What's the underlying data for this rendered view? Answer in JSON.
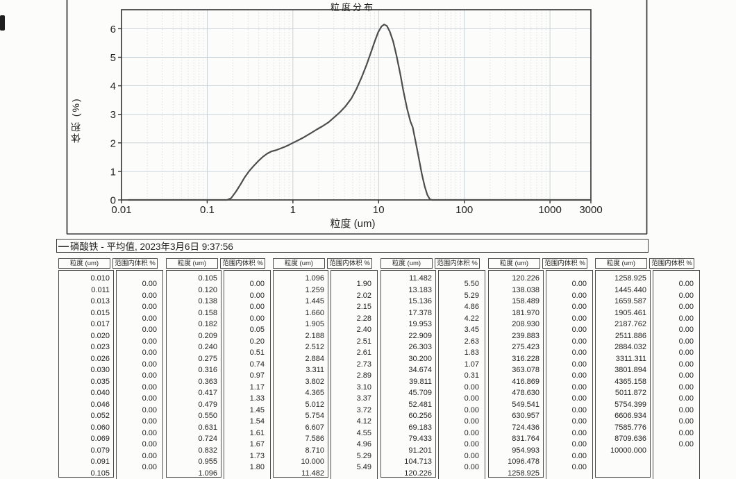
{
  "chart": {
    "title": "粒度分布",
    "ylabel": "体积 (%)",
    "xlabel": "粒度 (um)",
    "legend_text": "磷酸铁 - 平均值, 2023年3月6日 9:37:56",
    "x_tick_labels": [
      "0.01",
      "0.1",
      "1",
      "10",
      "100",
      "1000",
      "3000"
    ],
    "x_tick_values": [
      0.01,
      0.1,
      1,
      10,
      100,
      1000,
      3000
    ],
    "y_tick_labels": [
      "0",
      "1",
      "2",
      "3",
      "4",
      "5",
      "6"
    ],
    "y_tick_values": [
      0,
      1,
      2,
      3,
      4,
      5,
      6
    ],
    "curve_color": "#4d4d4d",
    "grid_major_color": "#c3cdd4",
    "grid_minor_color": "#d3dbe0",
    "frame_color": "#3d3d3d"
  },
  "chart_data": {
    "type": "line",
    "title": "粒度分布",
    "xlabel": "粒度 (um)",
    "ylabel": "体积 (%)",
    "x_scale": "log",
    "xlim": [
      0.01,
      3000
    ],
    "ylim": [
      0,
      6.7
    ],
    "grid": true,
    "legend_position": "bottom-left",
    "legend": [
      "磷酸铁 - 平均值, 2023年3月6日 9:37:56"
    ],
    "series": [
      {
        "name": "磷酸铁 - 平均值",
        "x": [
          0.012,
          0.17,
          0.19,
          0.215,
          0.245,
          0.275,
          0.31,
          0.35,
          0.4,
          0.45,
          0.5,
          0.56,
          0.63,
          0.7,
          0.8,
          0.9,
          1.0,
          1.15,
          1.35,
          1.6,
          1.9,
          2.2,
          2.6,
          3.0,
          3.5,
          4.1,
          4.8,
          5.5,
          6.3,
          7.2,
          8.1,
          9.0,
          9.9,
          10.8,
          11.6,
          12.5,
          13.5,
          14.8,
          16.2,
          17.8,
          19.5,
          21.5,
          23.5,
          25.0,
          27.0,
          29.5,
          32.0,
          34.5,
          37.0,
          39.5,
          42.0,
          100,
          1000,
          2900
        ],
        "y": [
          0.0,
          0.0,
          0.06,
          0.28,
          0.55,
          0.8,
          1.02,
          1.2,
          1.38,
          1.52,
          1.62,
          1.7,
          1.74,
          1.79,
          1.86,
          1.93,
          2.0,
          2.09,
          2.2,
          2.33,
          2.47,
          2.58,
          2.72,
          2.88,
          3.06,
          3.28,
          3.55,
          3.88,
          4.28,
          4.72,
          5.15,
          5.55,
          5.88,
          6.08,
          6.15,
          6.1,
          5.9,
          5.55,
          5.05,
          4.45,
          3.8,
          3.2,
          2.75,
          2.55,
          2.05,
          1.45,
          0.9,
          0.48,
          0.18,
          0.03,
          0.0,
          0.0,
          0.0,
          0.0
        ]
      }
    ]
  },
  "tables": [
    {
      "size_header": "粒度 (um)",
      "value_header": "范围内体积 %",
      "sizes": [
        "0.010",
        "0.011",
        "0.013",
        "0.015",
        "0.017",
        "0.020",
        "0.023",
        "0.026",
        "0.030",
        "0.035",
        "0.040",
        "0.046",
        "0.052",
        "0.060",
        "0.069",
        "0.079",
        "0.091",
        "0.105"
      ],
      "values": [
        "0.00",
        "0.00",
        "0.00",
        "0.00",
        "0.00",
        "0.00",
        "0.00",
        "0.00",
        "0.00",
        "0.00",
        "0.00",
        "0.00",
        "0.00",
        "0.00",
        "0.00",
        "0.00",
        "0.00"
      ]
    },
    {
      "size_header": "粒度 (um)",
      "value_header": "范围内体积 %",
      "sizes": [
        "0.105",
        "0.120",
        "0.138",
        "0.158",
        "0.182",
        "0.209",
        "0.240",
        "0.275",
        "0.316",
        "0.363",
        "0.417",
        "0.479",
        "0.550",
        "0.631",
        "0.724",
        "0.832",
        "0.955",
        "1.096"
      ],
      "values": [
        "0.00",
        "0.00",
        "0.00",
        "0.00",
        "0.05",
        "0.20",
        "0.51",
        "0.74",
        "0.97",
        "1.17",
        "1.33",
        "1.45",
        "1.54",
        "1.61",
        "1.67",
        "1.73",
        "1.80"
      ]
    },
    {
      "size_header": "粒度 (um)",
      "value_header": "范围内体积 %",
      "sizes": [
        "1.096",
        "1.259",
        "1.445",
        "1.660",
        "1.905",
        "2.188",
        "2.512",
        "2.884",
        "3.311",
        "3.802",
        "4.365",
        "5.012",
        "5.754",
        "6.607",
        "7.586",
        "8.710",
        "10.000",
        "11.482"
      ],
      "values": [
        "1.90",
        "2.02",
        "2.15",
        "2.28",
        "2.40",
        "2.51",
        "2.61",
        "2.73",
        "2.89",
        "3.10",
        "3.37",
        "3.72",
        "4.12",
        "4.55",
        "4.96",
        "5.29",
        "5.49"
      ]
    },
    {
      "size_header": "粒度 (um)",
      "value_header": "范围内体积 %",
      "sizes": [
        "11.482",
        "13.183",
        "15.136",
        "17.378",
        "19.953",
        "22.909",
        "26.303",
        "30.200",
        "34.674",
        "39.811",
        "45.709",
        "52.481",
        "60.256",
        "69.183",
        "79.433",
        "91.201",
        "104.713",
        "120.226"
      ],
      "values": [
        "5.50",
        "5.29",
        "4.86",
        "4.22",
        "3.45",
        "2.63",
        "1.83",
        "1.07",
        "0.31",
        "0.00",
        "0.00",
        "0.00",
        "0.00",
        "0.00",
        "0.00",
        "0.00",
        "0.00"
      ]
    },
    {
      "size_header": "粒度 (um)",
      "value_header": "范围内体积 %",
      "sizes": [
        "120.226",
        "138.038",
        "158.489",
        "181.970",
        "208.930",
        "239.883",
        "275.423",
        "316.228",
        "363.078",
        "416.869",
        "478.630",
        "549.541",
        "630.957",
        "724.436",
        "831.764",
        "954.993",
        "1096.478",
        "1258.925"
      ],
      "values": [
        "0.00",
        "0.00",
        "0.00",
        "0.00",
        "0.00",
        "0.00",
        "0.00",
        "0.00",
        "0.00",
        "0.00",
        "0.00",
        "0.00",
        "0.00",
        "0.00",
        "0.00",
        "0.00",
        "0.00"
      ]
    },
    {
      "size_header": "粒度 (um)",
      "value_header": "范围内体积 %",
      "sizes": [
        "1258.925",
        "1445.440",
        "1659.587",
        "1905.461",
        "2187.762",
        "2511.886",
        "2884.032",
        "3311.311",
        "3801.894",
        "4365.158",
        "5011.872",
        "5754.399",
        "6606.934",
        "7585.776",
        "8709.636",
        "10000.000"
      ],
      "values": [
        "0.00",
        "0.00",
        "0.00",
        "0.00",
        "0.00",
        "0.00",
        "0.00",
        "0.00",
        "0.00",
        "0.00",
        "0.00",
        "0.00",
        "0.00",
        "0.00",
        "0.00"
      ]
    }
  ]
}
